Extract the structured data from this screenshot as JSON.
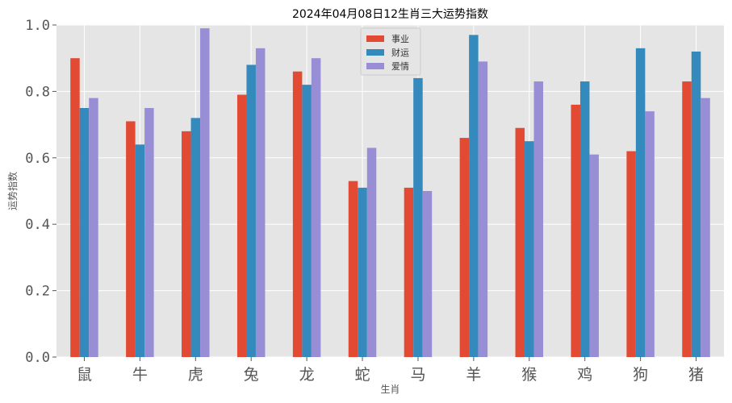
{
  "chart_data": {
    "type": "bar",
    "title": "2024年04月08日12生肖三大运势指数",
    "xlabel": "生肖",
    "ylabel": "运势指数",
    "categories": [
      "鼠",
      "牛",
      "虎",
      "兔",
      "龙",
      "蛇",
      "马",
      "羊",
      "猴",
      "鸡",
      "狗",
      "猪"
    ],
    "series": [
      {
        "name": "事业",
        "color": "#E24A33",
        "values": [
          0.9,
          0.71,
          0.68,
          0.79,
          0.86,
          0.53,
          0.51,
          0.66,
          0.69,
          0.76,
          0.62,
          0.83
        ]
      },
      {
        "name": "财运",
        "color": "#348ABD",
        "values": [
          0.75,
          0.64,
          0.72,
          0.88,
          0.82,
          0.51,
          0.84,
          0.97,
          0.65,
          0.83,
          0.93,
          0.92
        ]
      },
      {
        "name": "爱情",
        "color": "#988ED5",
        "values": [
          0.78,
          0.75,
          0.99,
          0.93,
          0.9,
          0.63,
          0.5,
          0.89,
          0.83,
          0.61,
          0.74,
          0.78
        ]
      }
    ],
    "ylim": [
      0,
      1.0
    ],
    "yticks": [
      "0.0",
      "0.2",
      "0.4",
      "0.6",
      "0.8",
      "1.0"
    ],
    "grid": true,
    "legend_position": "top-center",
    "background": "#E5E5E5"
  }
}
